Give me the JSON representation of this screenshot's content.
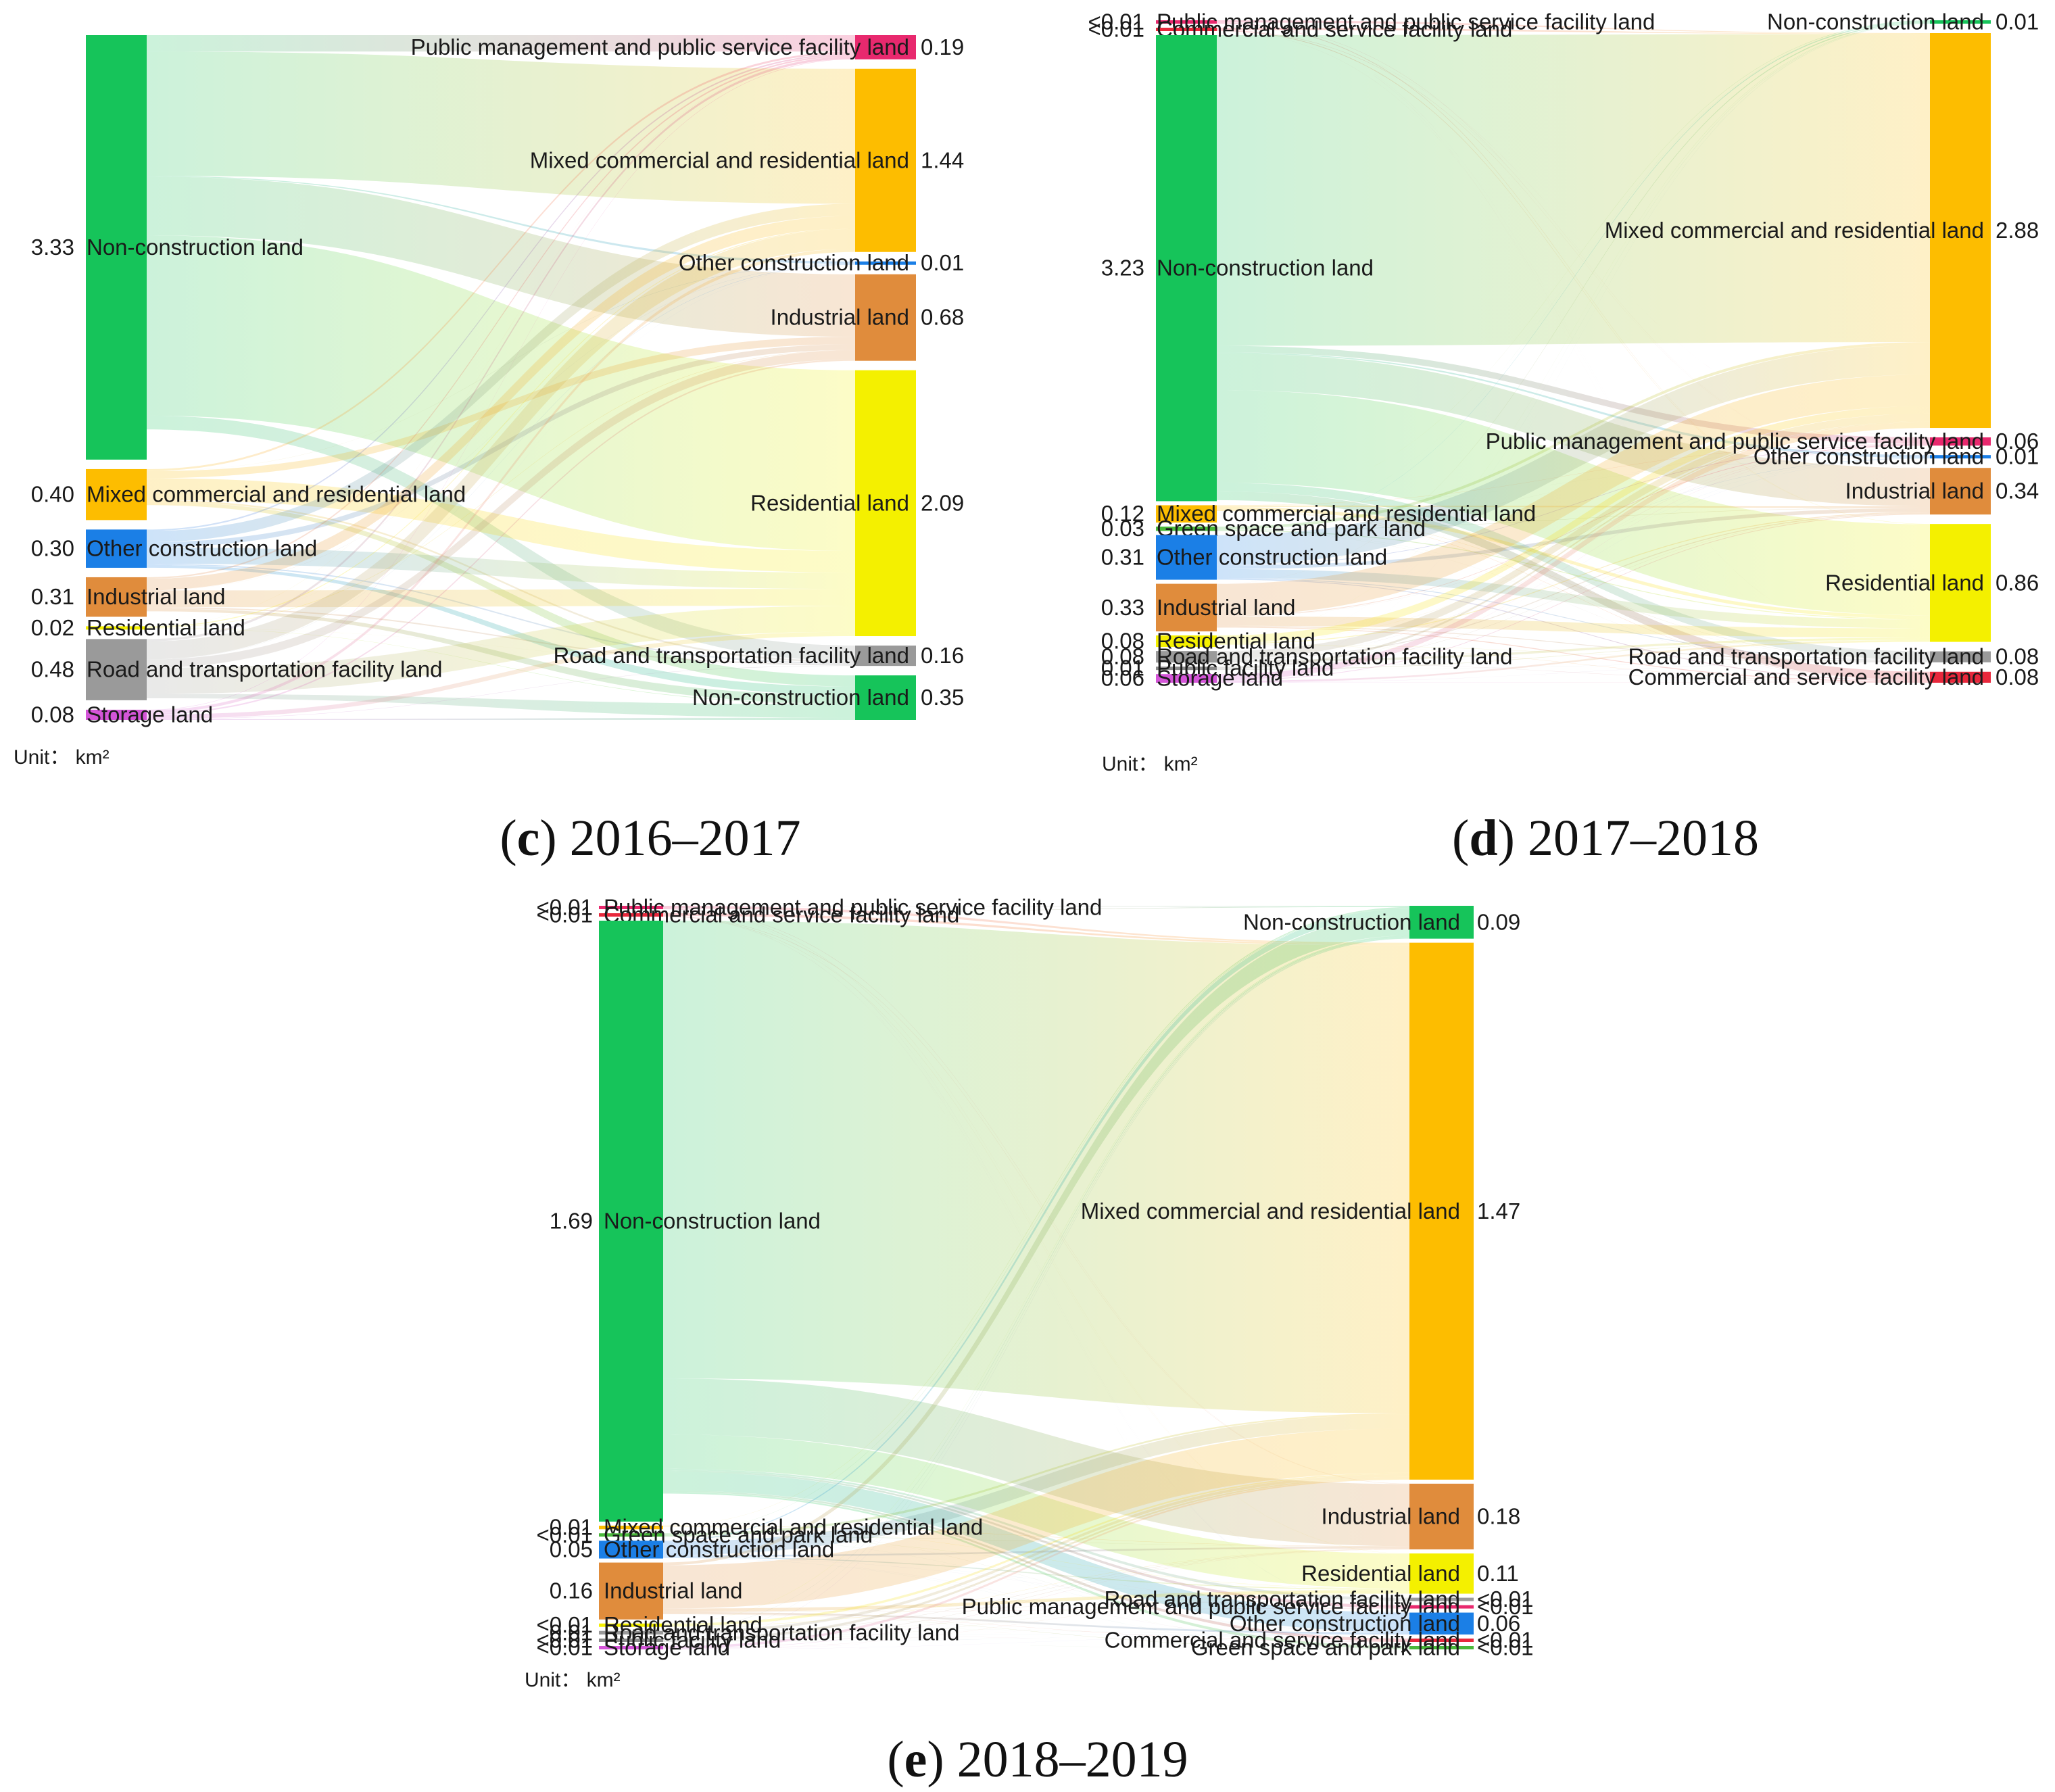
{
  "colors": {
    "Non-construction land": "#16c45a",
    "Mixed commercial and residential land": "#fdbd00",
    "Other construction land": "#1b7fe6",
    "Industrial land": "#e08c3c",
    "Residential land": "#f4f000",
    "Road and transportation facility land": "#9a9a9a",
    "Storage land": "#d455d8",
    "Public management and public service facility land": "#e8296e",
    "Commercial and service facility land": "#e8283c",
    "Green space and park land": "#49b83a",
    "Public facility land": "#8a8a8a"
  },
  "chart_data": [
    {
      "id": "c",
      "type": "sankey",
      "caption_letter": "c",
      "caption_text": " 2016–2017",
      "unit_label": "Unit： km²",
      "sources": [
        {
          "name": "Non-construction land",
          "value": 3.33,
          "value_label": "3.33"
        },
        {
          "name": "Mixed commercial and residential land",
          "value": 0.4,
          "value_label": "0.40"
        },
        {
          "name": "Other construction land",
          "value": 0.3,
          "value_label": "0.30"
        },
        {
          "name": "Industrial land",
          "value": 0.31,
          "value_label": "0.31"
        },
        {
          "name": "Residential land",
          "value": 0.02,
          "value_label": "0.02"
        },
        {
          "name": "Road and transportation facility land",
          "value": 0.48,
          "value_label": "0.48"
        },
        {
          "name": "Storage land",
          "value": 0.08,
          "value_label": "0.08"
        }
      ],
      "targets": [
        {
          "name": "Public management and public service facility land",
          "value": 0.19,
          "value_label": "0.19"
        },
        {
          "name": "Mixed commercial and residential land",
          "value": 1.44,
          "value_label": "1.44"
        },
        {
          "name": "Other construction land",
          "value": 0.01,
          "value_label": "0.01"
        },
        {
          "name": "Industrial land",
          "value": 0.68,
          "value_label": "0.68"
        },
        {
          "name": "Residential land",
          "value": 2.09,
          "value_label": "2.09"
        },
        {
          "name": "Road and transportation facility land",
          "value": 0.16,
          "value_label": "0.16"
        },
        {
          "name": "Non-construction land",
          "value": 0.35,
          "value_label": "0.35"
        }
      ]
    },
    {
      "id": "d",
      "type": "sankey",
      "caption_letter": "d",
      "caption_text": " 2017–2018",
      "unit_label": "Unit： km²",
      "sources": [
        {
          "name": "Public management and public service facility land",
          "value": 0.005,
          "value_label": "<0.01"
        },
        {
          "name": "Commercial and service facility land",
          "value": 0.005,
          "value_label": "<0.01"
        },
        {
          "name": "Non-construction land",
          "value": 3.23,
          "value_label": "3.23"
        },
        {
          "name": "Mixed commercial and residential land",
          "value": 0.12,
          "value_label": "0.12"
        },
        {
          "name": "Green space and park land",
          "value": 0.03,
          "value_label": "0.03"
        },
        {
          "name": "Other construction land",
          "value": 0.31,
          "value_label": "0.31"
        },
        {
          "name": "Industrial land",
          "value": 0.33,
          "value_label": "0.33"
        },
        {
          "name": "Residential land",
          "value": 0.08,
          "value_label": "0.08"
        },
        {
          "name": "Road and transportation facility land",
          "value": 0.08,
          "value_label": "0.08"
        },
        {
          "name": "Public facility land",
          "value": 0.01,
          "value_label": "0.01"
        },
        {
          "name": "Storage land",
          "value": 0.06,
          "value_label": "0.06"
        }
      ],
      "targets": [
        {
          "name": "Non-construction land",
          "value": 0.01,
          "value_label": "0.01"
        },
        {
          "name": "Mixed commercial and residential land",
          "value": 2.88,
          "value_label": "2.88"
        },
        {
          "name": "Public management and public service facility land",
          "value": 0.06,
          "value_label": "0.06"
        },
        {
          "name": "Other construction land",
          "value": 0.01,
          "value_label": "0.01"
        },
        {
          "name": "Industrial land",
          "value": 0.34,
          "value_label": "0.34"
        },
        {
          "name": "Residential land",
          "value": 0.86,
          "value_label": "0.86"
        },
        {
          "name": "Road and transportation facility land",
          "value": 0.08,
          "value_label": "0.08"
        },
        {
          "name": "Commercial and service facility land",
          "value": 0.08,
          "value_label": "0.08"
        }
      ]
    },
    {
      "id": "e",
      "type": "sankey",
      "caption_letter": "e",
      "caption_text": " 2018–2019",
      "unit_label": "Unit： km²",
      "sources": [
        {
          "name": "Public management and public service facility land",
          "value": 0.005,
          "value_label": "<0.01"
        },
        {
          "name": "Commercial and service facility land",
          "value": 0.005,
          "value_label": "<0.01"
        },
        {
          "name": "Non-construction land",
          "value": 1.69,
          "value_label": "1.69"
        },
        {
          "name": "Mixed commercial and residential land",
          "value": 0.01,
          "value_label": "0.01"
        },
        {
          "name": "Green space and park land",
          "value": 0.005,
          "value_label": "<0.01"
        },
        {
          "name": "Other construction land",
          "value": 0.05,
          "value_label": "0.05"
        },
        {
          "name": "Industrial land",
          "value": 0.16,
          "value_label": "0.16"
        },
        {
          "name": "Residential land",
          "value": 0.005,
          "value_label": "<0.01"
        },
        {
          "name": "Road and transportation facility land",
          "value": 0.01,
          "value_label": "0.01"
        },
        {
          "name": "Public facility land",
          "value": 0.005,
          "value_label": "<0.01"
        },
        {
          "name": "Storage land",
          "value": 0.005,
          "value_label": "<0.01"
        }
      ],
      "targets": [
        {
          "name": "Non-construction land",
          "value": 0.09,
          "value_label": "0.09"
        },
        {
          "name": "Mixed commercial and residential land",
          "value": 1.47,
          "value_label": "1.47"
        },
        {
          "name": "Industrial land",
          "value": 0.18,
          "value_label": "0.18"
        },
        {
          "name": "Residential land",
          "value": 0.11,
          "value_label": "0.11"
        },
        {
          "name": "Road and transportation facility land",
          "value": 0.005,
          "value_label": "<0.01"
        },
        {
          "name": "Public management and public service facility land",
          "value": 0.005,
          "value_label": "<0.01"
        },
        {
          "name": "Other construction land",
          "value": 0.06,
          "value_label": "0.06"
        },
        {
          "name": "Commercial and service facility land",
          "value": 0.005,
          "value_label": "<0.01"
        },
        {
          "name": "Green space and park land",
          "value": 0.005,
          "value_label": "<0.01"
        }
      ]
    }
  ]
}
